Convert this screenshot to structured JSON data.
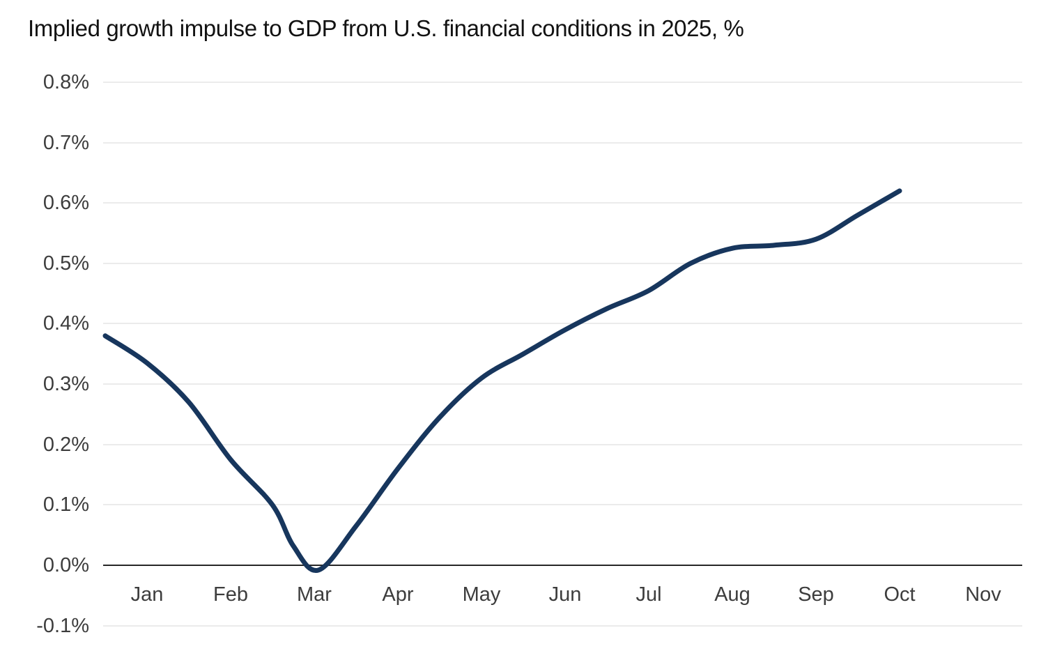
{
  "chart_data": {
    "type": "line",
    "title": "Implied growth impulse to GDP from U.S. financial conditions in 2025, %",
    "xlabel": "",
    "ylabel": "",
    "x_categories": [
      "Jan",
      "Feb",
      "Mar",
      "Apr",
      "May",
      "Jun",
      "Jul",
      "Aug",
      "Sep",
      "Oct",
      "Nov"
    ],
    "y_tick_labels": [
      "0.8%",
      "0.7%",
      "0.6%",
      "0.5%",
      "0.4%",
      "0.3%",
      "0.2%",
      "0.1%",
      "0.0%",
      "-0.1%"
    ],
    "ylim": [
      -0.1,
      0.8
    ],
    "grid": "horizontal-only",
    "legend": "none",
    "series": [
      {
        "name": "Implied growth impulse to GDP",
        "color": "#17365d",
        "x_unit": "month_index_from_Jan",
        "points": [
          [
            -0.5,
            0.38
          ],
          [
            0,
            0.335
          ],
          [
            0.5,
            0.27
          ],
          [
            1,
            0.175
          ],
          [
            1.5,
            0.1
          ],
          [
            1.75,
            0.032
          ],
          [
            2.05,
            -0.008
          ],
          [
            2.5,
            0.065
          ],
          [
            3,
            0.16
          ],
          [
            3.5,
            0.245
          ],
          [
            4,
            0.31
          ],
          [
            4.5,
            0.35
          ],
          [
            5,
            0.39
          ],
          [
            5.5,
            0.425
          ],
          [
            6,
            0.455
          ],
          [
            6.5,
            0.5
          ],
          [
            7,
            0.525
          ],
          [
            7.5,
            0.53
          ],
          [
            8,
            0.54
          ],
          [
            8.5,
            0.58
          ],
          [
            9,
            0.62
          ]
        ]
      }
    ]
  },
  "colors": {
    "line": "#17365d",
    "gridline": "#ebebeb",
    "zero_axis": "#262626",
    "tick_text": "#3d3d3d",
    "title_text": "#121212",
    "background": "#ffffff"
  }
}
